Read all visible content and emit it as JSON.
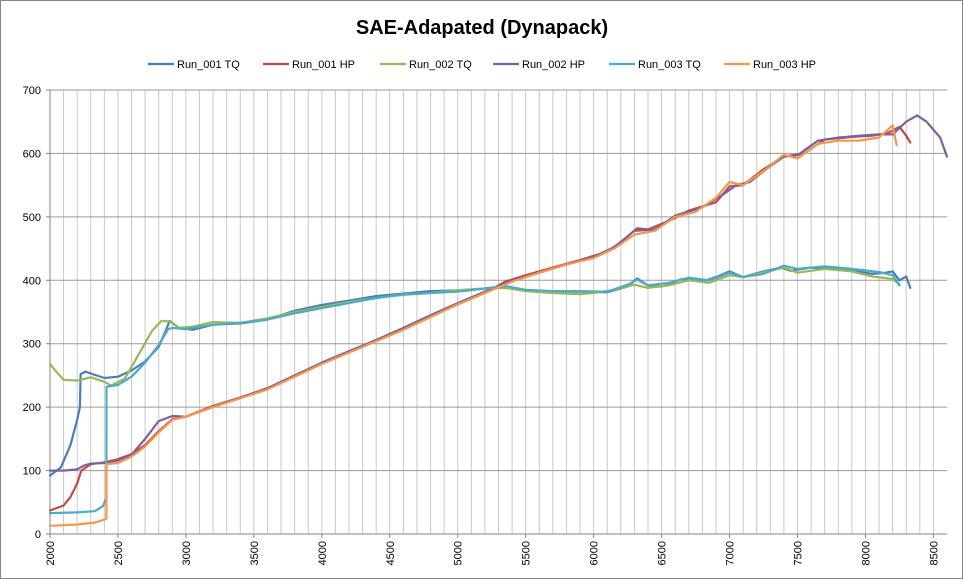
{
  "chart_data": {
    "type": "line",
    "title": "SAE-Adapated (Dynapack)",
    "xlabel": "",
    "ylabel": "",
    "xlim": [
      2000,
      8600
    ],
    "ylim": [
      0,
      700
    ],
    "x_ticks": [
      2000,
      2500,
      3000,
      3500,
      4000,
      4500,
      5000,
      5500,
      6000,
      6500,
      7000,
      7500,
      8000,
      8500
    ],
    "y_ticks": [
      0,
      100,
      200,
      300,
      400,
      500,
      600,
      700
    ],
    "grid": true,
    "legend_position": "top",
    "series": [
      {
        "name": "Run_001 TQ",
        "color": "#4A7EBB",
        "points": [
          [
            2000,
            92
          ],
          [
            2080,
            105
          ],
          [
            2150,
            140
          ],
          [
            2200,
            180
          ],
          [
            2220,
            200
          ],
          [
            2225,
            252
          ],
          [
            2260,
            256
          ],
          [
            2300,
            253
          ],
          [
            2400,
            246
          ],
          [
            2500,
            248
          ],
          [
            2600,
            258
          ],
          [
            2700,
            272
          ],
          [
            2800,
            295
          ],
          [
            2860,
            325
          ],
          [
            2880,
            336
          ],
          [
            2950,
            325
          ],
          [
            3050,
            322
          ],
          [
            3200,
            330
          ],
          [
            3400,
            332
          ],
          [
            3600,
            338
          ],
          [
            3800,
            352
          ],
          [
            4000,
            361
          ],
          [
            4200,
            368
          ],
          [
            4400,
            375
          ],
          [
            4600,
            379
          ],
          [
            4800,
            383
          ],
          [
            5000,
            384
          ],
          [
            5200,
            387
          ],
          [
            5350,
            390
          ],
          [
            5500,
            384
          ],
          [
            5700,
            382
          ],
          [
            5900,
            382
          ],
          [
            6100,
            381
          ],
          [
            6250,
            390
          ],
          [
            6320,
            403
          ],
          [
            6400,
            392
          ],
          [
            6500,
            390
          ],
          [
            6650,
            402
          ],
          [
            6800,
            398
          ],
          [
            6900,
            405
          ],
          [
            7000,
            414
          ],
          [
            7100,
            405
          ],
          [
            7250,
            414
          ],
          [
            7380,
            420
          ],
          [
            7450,
            415
          ],
          [
            7600,
            420
          ],
          [
            7750,
            418
          ],
          [
            7900,
            416
          ],
          [
            8050,
            410
          ],
          [
            8150,
            412
          ],
          [
            8200,
            414
          ],
          [
            8250,
            400
          ],
          [
            8300,
            406
          ],
          [
            8330,
            388
          ]
        ]
      },
      {
        "name": "Run_001 HP",
        "color": "#BE4B48",
        "points": [
          [
            2000,
            37
          ],
          [
            2100,
            45
          ],
          [
            2150,
            58
          ],
          [
            2200,
            80
          ],
          [
            2230,
            100
          ],
          [
            2300,
            110
          ],
          [
            2400,
            113
          ],
          [
            2500,
            118
          ],
          [
            2600,
            126
          ],
          [
            2700,
            140
          ],
          [
            2800,
            162
          ],
          [
            2900,
            181
          ],
          [
            3000,
            185
          ],
          [
            3200,
            202
          ],
          [
            3400,
            215
          ],
          [
            3600,
            229
          ],
          [
            3800,
            248
          ],
          [
            4000,
            270
          ],
          [
            4200,
            288
          ],
          [
            4400,
            305
          ],
          [
            4600,
            324
          ],
          [
            4800,
            343
          ],
          [
            5000,
            362
          ],
          [
            5200,
            380
          ],
          [
            5350,
            398
          ],
          [
            5500,
            408
          ],
          [
            5700,
            420
          ],
          [
            5900,
            432
          ],
          [
            6100,
            445
          ],
          [
            6200,
            460
          ],
          [
            6320,
            482
          ],
          [
            6400,
            480
          ],
          [
            6600,
            498
          ],
          [
            6700,
            510
          ],
          [
            6900,
            523
          ],
          [
            7000,
            548
          ],
          [
            7100,
            550
          ],
          [
            7250,
            575
          ],
          [
            7400,
            595
          ],
          [
            7550,
            600
          ],
          [
            7700,
            622
          ],
          [
            7900,
            626
          ],
          [
            8050,
            628
          ],
          [
            8150,
            631
          ],
          [
            8200,
            636
          ],
          [
            8250,
            642
          ],
          [
            8300,
            628
          ],
          [
            8330,
            617
          ]
        ]
      },
      {
        "name": "Run_002 TQ",
        "color": "#98B954",
        "points": [
          [
            2000,
            268
          ],
          [
            2050,
            255
          ],
          [
            2100,
            243
          ],
          [
            2200,
            242
          ],
          [
            2300,
            247
          ],
          [
            2400,
            240
          ],
          [
            2450,
            234
          ],
          [
            2550,
            245
          ],
          [
            2650,
            282
          ],
          [
            2750,
            320
          ],
          [
            2820,
            336
          ],
          [
            2880,
            335
          ],
          [
            2950,
            325
          ],
          [
            3050,
            327
          ],
          [
            3200,
            334
          ],
          [
            3400,
            333
          ],
          [
            3600,
            340
          ],
          [
            3800,
            350
          ],
          [
            4000,
            358
          ],
          [
            4200,
            366
          ],
          [
            4400,
            372
          ],
          [
            4600,
            377
          ],
          [
            4800,
            380
          ],
          [
            5000,
            384
          ],
          [
            5200,
            387
          ],
          [
            5350,
            388
          ],
          [
            5500,
            383
          ],
          [
            5700,
            380
          ],
          [
            5900,
            378
          ],
          [
            6000,
            380
          ],
          [
            6150,
            385
          ],
          [
            6300,
            393
          ],
          [
            6400,
            388
          ],
          [
            6550,
            392
          ],
          [
            6700,
            400
          ],
          [
            6850,
            396
          ],
          [
            7000,
            408
          ],
          [
            7100,
            405
          ],
          [
            7300,
            415
          ],
          [
            7400,
            420
          ],
          [
            7500,
            412
          ],
          [
            7700,
            418
          ],
          [
            7900,
            414
          ],
          [
            8050,
            406
          ],
          [
            8200,
            402
          ],
          [
            8250,
            394
          ]
        ]
      },
      {
        "name": "Run_002 HP",
        "color": "#7D60A0",
        "points": [
          [
            2000,
            100
          ],
          [
            2100,
            100
          ],
          [
            2200,
            102
          ],
          [
            2250,
            108
          ],
          [
            2300,
            111
          ],
          [
            2400,
            112
          ],
          [
            2500,
            116
          ],
          [
            2600,
            125
          ],
          [
            2700,
            150
          ],
          [
            2800,
            178
          ],
          [
            2900,
            186
          ],
          [
            3000,
            185
          ],
          [
            3200,
            200
          ],
          [
            3400,
            215
          ],
          [
            3600,
            230
          ],
          [
            3800,
            250
          ],
          [
            4000,
            270
          ],
          [
            4200,
            288
          ],
          [
            4400,
            306
          ],
          [
            4600,
            325
          ],
          [
            4800,
            345
          ],
          [
            5000,
            364
          ],
          [
            5200,
            382
          ],
          [
            5400,
            400
          ],
          [
            5600,
            412
          ],
          [
            5800,
            425
          ],
          [
            6000,
            437
          ],
          [
            6150,
            452
          ],
          [
            6300,
            478
          ],
          [
            6450,
            480
          ],
          [
            6600,
            502
          ],
          [
            6800,
            515
          ],
          [
            6950,
            535
          ],
          [
            7050,
            550
          ],
          [
            7150,
            555
          ],
          [
            7300,
            580
          ],
          [
            7400,
            595
          ],
          [
            7500,
            597
          ],
          [
            7650,
            620
          ],
          [
            7800,
            625
          ],
          [
            7950,
            628
          ],
          [
            8100,
            630
          ],
          [
            8200,
            630
          ],
          [
            8300,
            650
          ],
          [
            8380,
            660
          ],
          [
            8450,
            650
          ],
          [
            8550,
            625
          ],
          [
            8600,
            595
          ]
        ]
      },
      {
        "name": "Run_003 TQ",
        "color": "#4BACC6",
        "points": [
          [
            2000,
            33
          ],
          [
            2200,
            34
          ],
          [
            2330,
            36
          ],
          [
            2390,
            44
          ],
          [
            2415,
            57
          ],
          [
            2416,
            232
          ],
          [
            2500,
            235
          ],
          [
            2600,
            248
          ],
          [
            2700,
            270
          ],
          [
            2800,
            298
          ],
          [
            2870,
            323
          ],
          [
            2900,
            325
          ],
          [
            3000,
            323
          ],
          [
            3200,
            330
          ],
          [
            3400,
            333
          ],
          [
            3600,
            338
          ],
          [
            3800,
            348
          ],
          [
            4000,
            356
          ],
          [
            4200,
            364
          ],
          [
            4400,
            372
          ],
          [
            4600,
            378
          ],
          [
            4800,
            380
          ],
          [
            5000,
            382
          ],
          [
            5200,
            387
          ],
          [
            5350,
            391
          ],
          [
            5500,
            385
          ],
          [
            5700,
            383
          ],
          [
            5900,
            383
          ],
          [
            6100,
            382
          ],
          [
            6250,
            393
          ],
          [
            6320,
            401
          ],
          [
            6400,
            392
          ],
          [
            6550,
            396
          ],
          [
            6700,
            404
          ],
          [
            6850,
            400
          ],
          [
            7000,
            412
          ],
          [
            7100,
            405
          ],
          [
            7250,
            410
          ],
          [
            7400,
            423
          ],
          [
            7500,
            418
          ],
          [
            7700,
            422
          ],
          [
            7900,
            418
          ],
          [
            8100,
            413
          ],
          [
            8200,
            408
          ],
          [
            8250,
            392
          ]
        ]
      },
      {
        "name": "Run_003 HP",
        "color": "#F79646",
        "points": [
          [
            2000,
            13
          ],
          [
            2200,
            15
          ],
          [
            2330,
            18
          ],
          [
            2390,
            22
          ],
          [
            2415,
            24
          ],
          [
            2416,
            110
          ],
          [
            2500,
            112
          ],
          [
            2600,
            122
          ],
          [
            2700,
            138
          ],
          [
            2800,
            160
          ],
          [
            2900,
            180
          ],
          [
            3000,
            185
          ],
          [
            3200,
            200
          ],
          [
            3400,
            214
          ],
          [
            3600,
            228
          ],
          [
            3800,
            248
          ],
          [
            4000,
            268
          ],
          [
            4200,
            286
          ],
          [
            4400,
            304
          ],
          [
            4600,
            322
          ],
          [
            4800,
            342
          ],
          [
            5000,
            362
          ],
          [
            5200,
            380
          ],
          [
            5400,
            398
          ],
          [
            5600,
            412
          ],
          [
            5800,
            425
          ],
          [
            6000,
            435
          ],
          [
            6150,
            450
          ],
          [
            6300,
            472
          ],
          [
            6450,
            478
          ],
          [
            6600,
            500
          ],
          [
            6750,
            508
          ],
          [
            6900,
            530
          ],
          [
            7000,
            555
          ],
          [
            7100,
            550
          ],
          [
            7250,
            572
          ],
          [
            7400,
            598
          ],
          [
            7500,
            592
          ],
          [
            7650,
            615
          ],
          [
            7800,
            620
          ],
          [
            7950,
            620
          ],
          [
            8100,
            625
          ],
          [
            8200,
            644
          ],
          [
            8230,
            613
          ]
        ]
      }
    ]
  }
}
